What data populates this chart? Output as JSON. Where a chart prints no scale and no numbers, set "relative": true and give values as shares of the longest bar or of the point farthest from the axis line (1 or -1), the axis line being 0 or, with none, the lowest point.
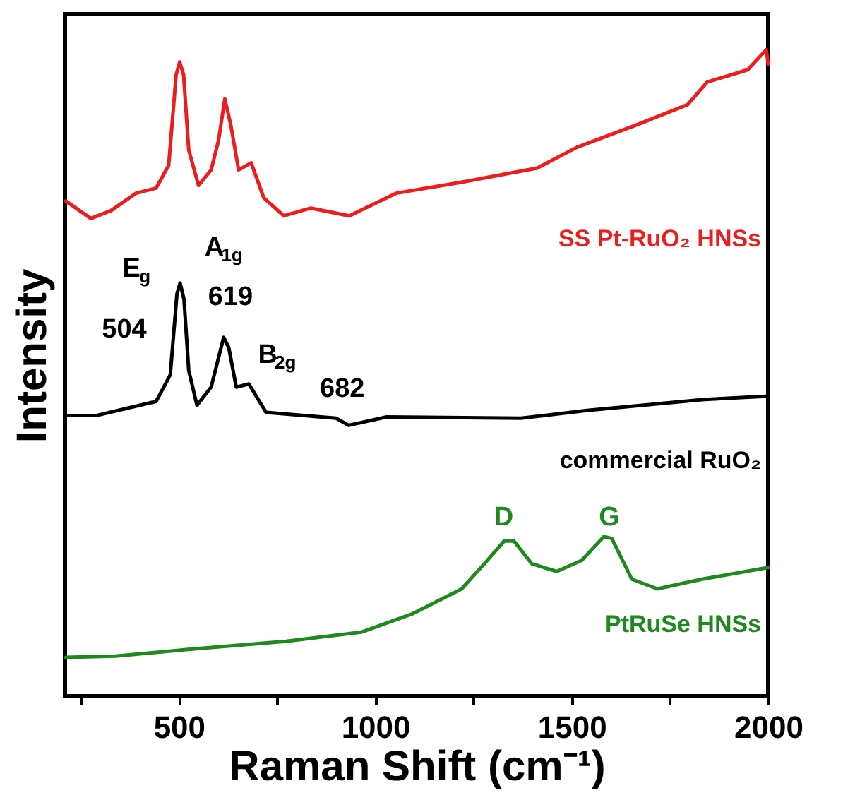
{
  "chart_data": {
    "type": "line",
    "relative": true,
    "xlabel": "Raman Shift (cm⁻¹)",
    "ylabel": "Intensity",
    "xlim": [
      210,
      2000
    ],
    "xticks": [
      {
        "value": 250,
        "label": null
      },
      500,
      {
        "value": 750,
        "label": null
      },
      1000,
      {
        "value": 1250,
        "label": null
      },
      1500,
      {
        "value": 1750,
        "label": null
      },
      2000
    ],
    "legend": false,
    "line_style": "solid",
    "marker": "none",
    "series": [
      {
        "name": "SS Pt-RuO₂ HNSs",
        "color": "#ee1c1c",
        "x": [
          212,
          276,
          327,
          391,
          442,
          474,
          493,
          502,
          512,
          525,
          550,
          582,
          601,
          617,
          632,
          652,
          684,
          716,
          767,
          836,
          934,
          1053,
          1220,
          1412,
          1513,
          1666,
          1795,
          1845,
          1948,
          1995,
          2000
        ],
        "values": [
          0.766,
          0.739,
          0.751,
          0.778,
          0.786,
          0.821,
          0.961,
          0.981,
          0.961,
          0.845,
          0.79,
          0.814,
          0.86,
          0.924,
          0.884,
          0.814,
          0.825,
          0.771,
          0.743,
          0.755,
          0.743,
          0.778,
          0.795,
          0.817,
          0.849,
          0.884,
          0.915,
          0.95,
          0.969,
          1,
          0.978
        ]
      },
      {
        "name": "commercial RuO₂",
        "color": "#000000",
        "x": [
          212,
          289,
          442,
          478,
          495,
          503,
          513,
          525,
          546,
          582,
          614,
          627,
          646,
          678,
          722,
          900,
          932,
          1029,
          1371,
          1539,
          1837,
          1993
        ],
        "values": [
          0.434,
          0.434,
          0.456,
          0.497,
          0.622,
          0.639,
          0.614,
          0.504,
          0.45,
          0.478,
          0.555,
          0.539,
          0.478,
          0.483,
          0.439,
          0.43,
          0.419,
          0.432,
          0.43,
          0.442,
          0.459,
          0.464
        ]
      },
      {
        "name": "PtRuSe HNSs",
        "color": "#1e8a1e",
        "x": [
          212,
          339,
          518,
          773,
          964,
          1093,
          1220,
          1282,
          1328,
          1353,
          1398,
          1462,
          1525,
          1582,
          1602,
          1653,
          1718,
          1832,
          2000
        ],
        "values": [
          0.06,
          0.062,
          0.072,
          0.085,
          0.099,
          0.127,
          0.166,
          0.208,
          0.24,
          0.24,
          0.205,
          0.193,
          0.21,
          0.247,
          0.244,
          0.181,
          0.166,
          0.181,
          0.199
        ]
      }
    ],
    "annotations": [
      "E$_{g}$",
      "504",
      "A$_{1g}$",
      "619",
      "B$_{2g}$",
      "682",
      "D",
      "G"
    ]
  }
}
